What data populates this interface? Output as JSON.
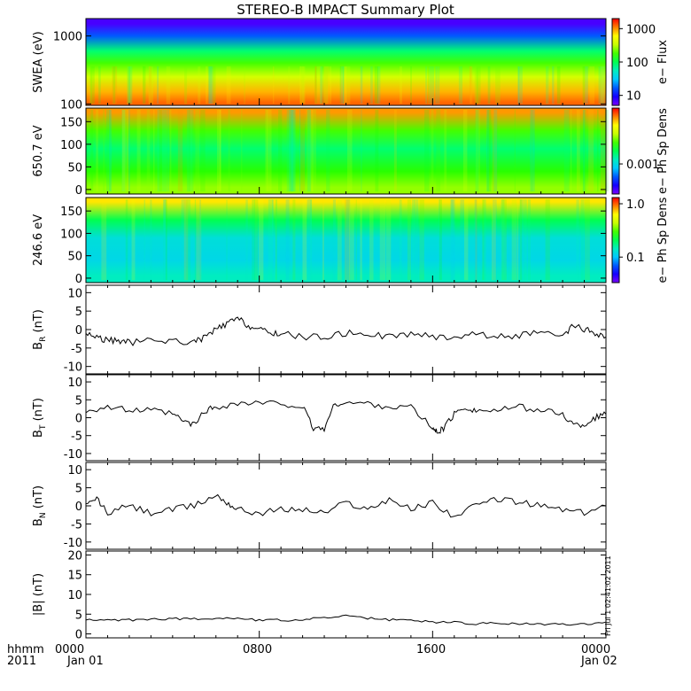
{
  "title": "STEREO-B IMPACT Summary Plot",
  "footer": {
    "left_top": "hhmm",
    "left_bottom": "2011",
    "ticks": [
      {
        "hhmm": "0000",
        "date": "Jan 01"
      },
      {
        "hhmm": "0800",
        "date": ""
      },
      {
        "hhmm": "1600",
        "date": ""
      },
      {
        "hhmm": "0000",
        "date": "Jan 02"
      }
    ]
  },
  "stamp": "Fri Jul 1 02:41:02 2011",
  "colors": {
    "line": "#000000",
    "background": "#ffffff"
  },
  "chart_data": [
    {
      "type": "heatmap",
      "ylabel": "SWEA (eV)",
      "colorbar_label": "e− Flux",
      "yscale": "log",
      "ylim": [
        95,
        1800
      ],
      "yticks": [
        100,
        1000
      ],
      "yticklabels": [
        "100",
        "1000"
      ],
      "colorbar_ticks": [
        "10",
        "100",
        "1000"
      ],
      "colorbar_scale": "log",
      "colorbar_range": [
        5,
        2000
      ],
      "x_range_hours": [
        0,
        24
      ],
      "description_rows": [
        {
          "energy_eV": 1500,
          "level": 0.05
        },
        {
          "energy_eV": 1000,
          "level": 0.2
        },
        {
          "energy_eV": 600,
          "level": 0.48
        },
        {
          "energy_eV": 400,
          "level": 0.6
        },
        {
          "energy_eV": 250,
          "level": 0.72
        },
        {
          "energy_eV": 150,
          "level": 0.86
        },
        {
          "energy_eV": 105,
          "level": 0.92
        }
      ]
    },
    {
      "type": "heatmap",
      "ylabel": "650.7 eV",
      "colorbar_label": "e− Ph Sp Dens",
      "ylim": [
        -10,
        180
      ],
      "yticks": [
        0,
        50,
        100,
        150
      ],
      "colorbar_ticks": [
        "0.001"
      ],
      "x_range_hours": [
        0,
        24
      ],
      "description_rows": [
        {
          "pitch_angle_deg": 170,
          "level": 0.88
        },
        {
          "pitch_angle_deg": 130,
          "level": 0.6
        },
        {
          "pitch_angle_deg": 90,
          "level": 0.48
        },
        {
          "pitch_angle_deg": 40,
          "level": 0.58
        },
        {
          "pitch_angle_deg": 5,
          "level": 0.66
        }
      ]
    },
    {
      "type": "heatmap",
      "ylabel": "246.6 eV",
      "colorbar_label": "e− Ph Sp Dens",
      "ylim": [
        -10,
        180
      ],
      "yticks": [
        0,
        50,
        100,
        150
      ],
      "colorbar_ticks": [
        "0.1",
        "1.0"
      ],
      "x_range_hours": [
        0,
        24
      ],
      "description_rows": [
        {
          "pitch_angle_deg": 170,
          "level": 0.82
        },
        {
          "pitch_angle_deg": 130,
          "level": 0.5
        },
        {
          "pitch_angle_deg": 90,
          "level": 0.36
        },
        {
          "pitch_angle_deg": 40,
          "level": 0.34
        },
        {
          "pitch_angle_deg": 5,
          "level": 0.4
        }
      ]
    },
    {
      "type": "line",
      "ylabel": "B_R (nT)",
      "ylabel_main": "B",
      "ylabel_sub": "R",
      "ylabel_unit": " (nT)",
      "ylim": [
        -12,
        12
      ],
      "yticks": [
        -10,
        -5,
        0,
        5,
        10
      ],
      "x_hours": [
        0,
        0.5,
        1,
        1.5,
        2,
        3,
        4,
        5,
        5.5,
        6,
        6.5,
        7,
        7.5,
        8,
        8.5,
        9,
        10,
        11,
        12,
        13,
        14,
        15,
        16,
        17,
        18,
        19,
        20,
        21,
        22,
        22.5,
        23,
        23.5,
        24
      ],
      "values": [
        -1,
        -2,
        -3,
        -3,
        -3.5,
        -3,
        -3,
        -3.5,
        -2,
        0,
        1.5,
        3,
        1,
        0,
        -1,
        -1,
        -2,
        -2,
        -1,
        -1,
        -2,
        -1,
        -2,
        -2,
        -1,
        -2,
        -1.5,
        -1,
        -2,
        1,
        0,
        -1,
        -2
      ]
    },
    {
      "type": "line",
      "ylabel": "B_T (nT)",
      "ylabel_main": "B",
      "ylabel_sub": "T",
      "ylabel_unit": " (nT)",
      "ylim": [
        -12,
        12
      ],
      "yticks": [
        -10,
        -5,
        0,
        5,
        10
      ],
      "x_hours": [
        0,
        1,
        2,
        3,
        4,
        4.5,
        5,
        5.5,
        6,
        7,
        8,
        9,
        10,
        10.5,
        11,
        11.5,
        12,
        13,
        14,
        15,
        16,
        16.2,
        16.5,
        17,
        17.5,
        18,
        19,
        20,
        21,
        22,
        22.5,
        23,
        23.5,
        24
      ],
      "values": [
        2,
        3,
        2,
        2,
        1,
        -1,
        -2,
        2,
        3,
        4,
        4,
        4,
        3,
        -3,
        -3,
        4,
        4,
        4,
        3,
        3,
        -3,
        -4,
        -3,
        1,
        3,
        2,
        2,
        3,
        2,
        1,
        -2,
        -2,
        0,
        1
      ]
    },
    {
      "type": "line",
      "ylabel": "B_N (nT)",
      "ylabel_main": "B",
      "ylabel_sub": "N",
      "ylabel_unit": " (nT)",
      "ylim": [
        -12,
        12
      ],
      "yticks": [
        -10,
        -5,
        0,
        5,
        10
      ],
      "x_hours": [
        0,
        0.5,
        1,
        2,
        3,
        4,
        5,
        6,
        6.5,
        7,
        8,
        9,
        10,
        11,
        12,
        13,
        14,
        15,
        16,
        17,
        18,
        19,
        20,
        21,
        22,
        23,
        24
      ],
      "values": [
        0,
        2,
        -2,
        0,
        -2,
        -1,
        0,
        3,
        1,
        -1,
        -2,
        -1,
        -1,
        -2,
        1,
        -1,
        2,
        -1,
        1,
        -3,
        0,
        2,
        1,
        0,
        -1,
        -2,
        0
      ]
    },
    {
      "type": "line",
      "ylabel": "|B| (nT)",
      "ylabel_main": "|B|",
      "ylabel_sub": "",
      "ylabel_unit": " (nT)",
      "ylim": [
        -1,
        21
      ],
      "yticks": [
        0,
        5,
        10,
        15,
        20
      ],
      "x_hours": [
        0,
        1,
        2,
        3,
        4,
        5,
        6,
        7,
        8,
        9,
        10,
        11,
        12,
        13,
        14,
        15,
        16,
        17,
        18,
        19,
        20,
        21,
        22,
        23,
        24
      ],
      "values": [
        3.5,
        3.5,
        3.5,
        3.8,
        3.8,
        3.8,
        4,
        4,
        3.5,
        3.5,
        3.5,
        4.2,
        4.5,
        4,
        3.5,
        3.5,
        3,
        3,
        2.5,
        2.8,
        2.5,
        2.5,
        2.5,
        2.5,
        3
      ]
    }
  ]
}
